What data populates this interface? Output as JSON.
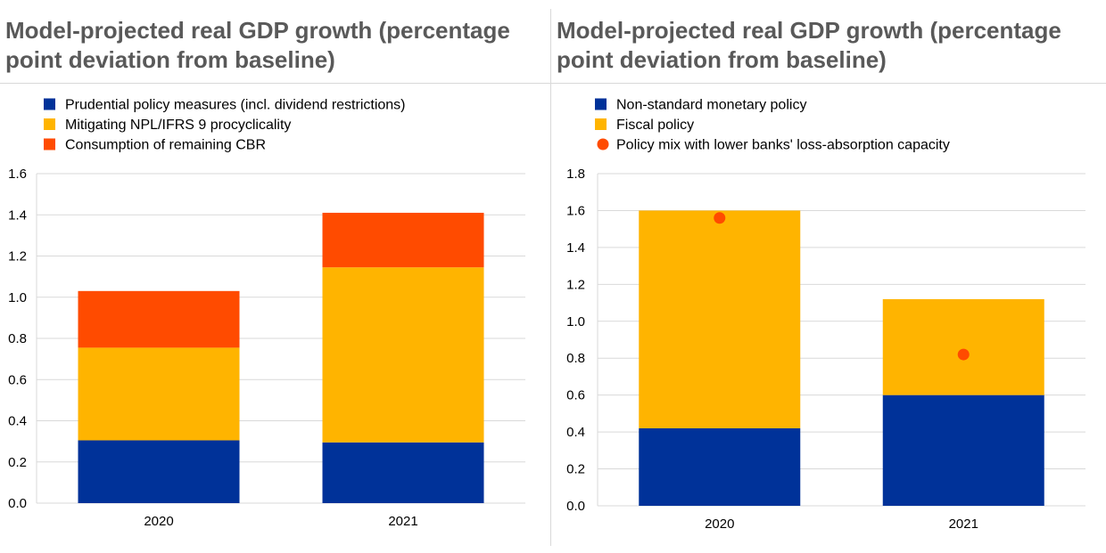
{
  "charts": [
    {
      "title": "Model-projected real GDP growth (percentage point deviation from baseline)",
      "chart_data": {
        "type": "bar",
        "stacked": true,
        "categories": [
          "2020",
          "2021"
        ],
        "ylim": [
          0,
          1.6
        ],
        "yticks": [
          "1.6",
          "1.4",
          "1.2",
          "1.0",
          "0.8",
          "0.6",
          "0.4",
          "0.2",
          "0.0"
        ],
        "grid": true,
        "legend_position": "top-left",
        "series": [
          {
            "name": "Prudential policy measures (incl. dividend restrictions)",
            "values": [
              0.305,
              0.295
            ],
            "color": "#003299",
            "marker": "square"
          },
          {
            "name": "Mitigating NPL/IFRS 9 procyclicality",
            "values": [
              0.45,
              0.85
            ],
            "color": "#ffb400",
            "marker": "square"
          },
          {
            "name": "Consumption of remaining CBR",
            "values": [
              0.275,
              0.265
            ],
            "color": "#ff4b00",
            "marker": "square"
          }
        ],
        "points": []
      }
    },
    {
      "title": "Model-projected real GDP growth (percentage point deviation from baseline)",
      "chart_data": {
        "type": "bar",
        "stacked": true,
        "categories": [
          "2020",
          "2021"
        ],
        "ylim": [
          0,
          1.8
        ],
        "yticks": [
          "1.8",
          "1.6",
          "1.4",
          "1.2",
          "1.0",
          "0.8",
          "0.6",
          "0.4",
          "0.2",
          "0.0"
        ],
        "grid": true,
        "legend_position": "top-left",
        "series": [
          {
            "name": "Non-standard monetary policy",
            "values": [
              0.42,
              0.6
            ],
            "color": "#003299",
            "marker": "square"
          },
          {
            "name": "Fiscal policy",
            "values": [
              1.18,
              0.52
            ],
            "color": "#ffb400",
            "marker": "square"
          }
        ],
        "points": [
          {
            "name": "Policy mix with lower banks' loss-absorption capacity",
            "values": [
              1.56,
              0.82
            ],
            "color": "#ff4b00",
            "marker": "circle"
          }
        ]
      }
    }
  ]
}
